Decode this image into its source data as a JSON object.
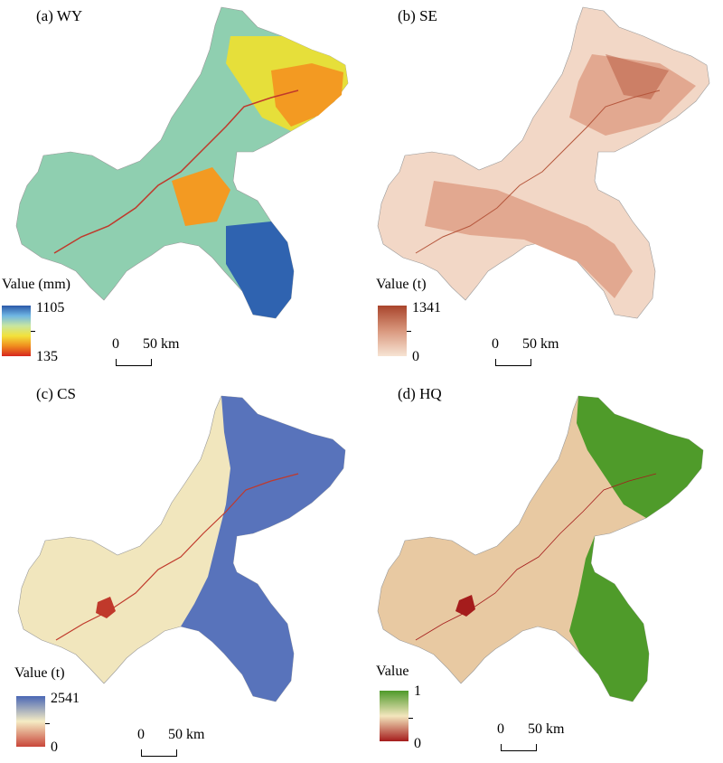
{
  "panels": [
    {
      "title": "(a) WY",
      "legend_title": "Value (mm)",
      "legend_max": "1105",
      "legend_min": "135",
      "legend_colors": [
        "#2b58a8",
        "#6fb6e3",
        "#c8e6a0",
        "#f3e23a",
        "#f08c1e",
        "#d7261e"
      ],
      "map_colors": {
        "base": "#8fcfb0",
        "high": "#2f63b0",
        "mid": "#e6df3a",
        "low": "#f39a22",
        "river": "#c0392b"
      }
    },
    {
      "title": "(b) SE",
      "legend_title": "Value (t)",
      "legend_max": "1341",
      "legend_min": "0",
      "legend_colors": [
        "#a9452c",
        "#d9987e",
        "#f7e4d4"
      ],
      "map_colors": {
        "base": "#f2d7c6",
        "high": "#b5563c",
        "mid": "#e2a890",
        "low": "#f7e6da",
        "river": "#b5563c"
      }
    },
    {
      "title": "(c) CS",
      "legend_title": "Value (t)",
      "legend_max": "2541",
      "legend_min": "0",
      "legend_colors": [
        "#4a67b5",
        "#f5ecc4",
        "#c9463a"
      ],
      "map_colors": {
        "base": "#f1e6bd",
        "high": "#5873bb",
        "mid": "#f1e6bd",
        "low": "#c0392b",
        "river": "#c0392b"
      }
    },
    {
      "title": "(d) HQ",
      "legend_title": "Value",
      "legend_max": "1",
      "legend_min": "0",
      "legend_colors": [
        "#4e9a2a",
        "#f3e6bd",
        "#a51c1c"
      ],
      "map_colors": {
        "base": "#e8c9a2",
        "high": "#4f9b2a",
        "mid": "#f0deb4",
        "low": "#a51c1c",
        "river": "#a51c1c"
      }
    }
  ],
  "scalebar": {
    "zero": "0",
    "label": "50 km"
  }
}
